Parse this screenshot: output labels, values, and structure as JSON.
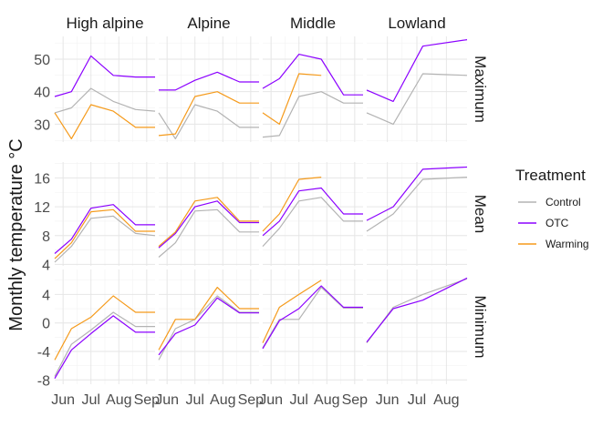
{
  "chart_data": {
    "type": "line",
    "ylabel": "Monthly temperature °C",
    "xlabel": "",
    "legend": {
      "title": "Treatment",
      "placement": "right",
      "entries": [
        {
          "name": "Control",
          "color": "#b3b3b3"
        },
        {
          "name": "OTC",
          "color": "#8b00ff"
        },
        {
          "name": "Warming",
          "color": "#f59a1a"
        }
      ]
    },
    "grid": true,
    "columns": [
      "High alpine",
      "Alpine",
      "Middle",
      "Lowland"
    ],
    "rows": [
      {
        "label": "Maximum",
        "ylim": [
          24.5,
          57
        ],
        "yticks": [
          30,
          40,
          50
        ],
        "ytick_labels": [
          "30",
          "40",
          "50"
        ]
      },
      {
        "label": "Mean",
        "ylim": [
          3.8,
          18.2
        ],
        "yticks": [
          4,
          8,
          12,
          16
        ],
        "ytick_labels": [
          "4",
          "8",
          "12",
          "16"
        ]
      },
      {
        "label": "Minimum",
        "ylim": [
          -8.6,
          7.5
        ],
        "yticks": [
          -8,
          -4,
          0,
          4
        ],
        "ytick_labels": [
          "-8",
          "-4",
          "0",
          "4"
        ]
      }
    ],
    "column_x_axes": [
      {
        "x_range": [
          5.7,
          9.3
        ],
        "ticks": [
          6,
          7,
          8,
          9
        ],
        "tick_labels": [
          "Jun",
          "Jul",
          "Aug",
          "Sep"
        ]
      },
      {
        "x_range": [
          5.7,
          9.3
        ],
        "ticks": [
          6,
          7,
          8,
          9
        ],
        "tick_labels": [
          "Jun",
          "Jul",
          "Aug",
          "Sep"
        ]
      },
      {
        "x_range": [
          5.7,
          9.3
        ],
        "ticks": [
          6,
          7,
          8,
          9
        ],
        "tick_labels": [
          "Jun",
          "Jul",
          "Aug",
          "Sep"
        ]
      },
      {
        "x_range": [
          5.3,
          8.7
        ],
        "ticks": [
          6,
          7,
          8
        ],
        "tick_labels": [
          "Jun",
          "Jul",
          "Aug"
        ]
      }
    ],
    "panels": [
      {
        "row": "Maximum",
        "column": "High alpine",
        "series": [
          {
            "name": "Control",
            "x": [
              5.7,
              6.3,
              7,
              7.8,
              8.6,
              9.3
            ],
            "y": [
              33.5,
              35,
              41,
              37,
              34.5,
              34
            ]
          },
          {
            "name": "OTC",
            "x": [
              5.7,
              6.3,
              7,
              7.8,
              8.6,
              9.3
            ],
            "y": [
              38.5,
              40,
              51,
              45,
              44.5,
              44.5
            ]
          },
          {
            "name": "Warming",
            "x": [
              5.7,
              6.3,
              7,
              7.8,
              8.6,
              9.3
            ],
            "y": [
              33.5,
              25.5,
              36,
              34,
              29,
              29
            ]
          }
        ]
      },
      {
        "row": "Maximum",
        "column": "Alpine",
        "series": [
          {
            "name": "Control",
            "x": [
              5.7,
              6.3,
              7,
              7.8,
              8.6,
              9.3
            ],
            "y": [
              33.5,
              25.5,
              36,
              34,
              29,
              29
            ]
          },
          {
            "name": "OTC",
            "x": [
              5.7,
              6.3,
              7,
              7.8,
              8.6,
              9.3
            ],
            "y": [
              40.5,
              40.5,
              43.5,
              46,
              43,
              43
            ]
          },
          {
            "name": "Warming",
            "x": [
              5.7,
              6.3,
              7,
              7.8,
              8.6,
              9.3
            ],
            "y": [
              26.5,
              27,
              38.5,
              40,
              36.5,
              36.5
            ]
          }
        ]
      },
      {
        "row": "Maximum",
        "column": "Middle",
        "series": [
          {
            "name": "Control",
            "x": [
              5.7,
              6.3,
              7,
              7.8,
              8.6,
              9.3
            ],
            "y": [
              26,
              26.5,
              38.5,
              40,
              36.5,
              36.5
            ]
          },
          {
            "name": "OTC",
            "x": [
              5.7,
              6.3,
              7,
              7.8,
              8.6,
              9.3
            ],
            "y": [
              41,
              44,
              51.5,
              50,
              39,
              39
            ]
          },
          {
            "name": "Warming",
            "x": [
              5.7,
              6.3,
              7,
              7.8
            ],
            "y": [
              33.5,
              30,
              45.5,
              45
            ]
          }
        ]
      },
      {
        "row": "Maximum",
        "column": "Lowland",
        "series": [
          {
            "name": "Control",
            "x": [
              5.3,
              6.2,
              7.2,
              8.7
            ],
            "y": [
              33.5,
              30,
              45.5,
              45
            ]
          },
          {
            "name": "OTC",
            "x": [
              5.3,
              6.2,
              7.2,
              8.7
            ],
            "y": [
              40.5,
              37,
              54,
              56
            ]
          }
        ]
      },
      {
        "row": "Mean",
        "column": "High alpine",
        "series": [
          {
            "name": "Control",
            "x": [
              5.7,
              6.3,
              7,
              7.8,
              8.6,
              9.3
            ],
            "y": [
              4.3,
              6.5,
              10.4,
              10.7,
              8.3,
              8
            ]
          },
          {
            "name": "OTC",
            "x": [
              5.7,
              6.3,
              7,
              7.8,
              8.6,
              9.3
            ],
            "y": [
              5.5,
              7.5,
              11.8,
              12.3,
              9.5,
              9.5
            ]
          },
          {
            "name": "Warming",
            "x": [
              5.7,
              6.3,
              7,
              7.8,
              8.6,
              9.3
            ],
            "y": [
              4.8,
              7,
              11.3,
              11.6,
              8.6,
              8.6
            ]
          }
        ]
      },
      {
        "row": "Mean",
        "column": "Alpine",
        "series": [
          {
            "name": "Control",
            "x": [
              5.7,
              6.3,
              7,
              7.8,
              8.6,
              9.3
            ],
            "y": [
              5,
              7,
              11.4,
              11.6,
              8.5,
              8.5
            ]
          },
          {
            "name": "OTC",
            "x": [
              5.7,
              6.3,
              7,
              7.8,
              8.6,
              9.3
            ],
            "y": [
              6.3,
              8.3,
              12,
              12.8,
              9.8,
              9.8
            ]
          },
          {
            "name": "Warming",
            "x": [
              5.7,
              6.3,
              7,
              7.8,
              8.6,
              9.3
            ],
            "y": [
              6.5,
              8.5,
              12.8,
              13.3,
              10,
              10
            ]
          }
        ]
      },
      {
        "row": "Mean",
        "column": "Middle",
        "series": [
          {
            "name": "Control",
            "x": [
              5.7,
              6.3,
              7,
              7.8,
              8.6,
              9.3
            ],
            "y": [
              6.5,
              9,
              12.8,
              13.3,
              10,
              10
            ]
          },
          {
            "name": "OTC",
            "x": [
              5.7,
              6.3,
              7,
              7.8,
              8.6,
              9.3
            ],
            "y": [
              8,
              10,
              14.2,
              14.6,
              11,
              11
            ]
          },
          {
            "name": "Warming",
            "x": [
              5.7,
              6.3,
              7,
              7.8
            ],
            "y": [
              8.6,
              11,
              15.8,
              16.1
            ]
          }
        ]
      },
      {
        "row": "Mean",
        "column": "Lowland",
        "series": [
          {
            "name": "Control",
            "x": [
              5.3,
              6.2,
              7.2,
              8.7
            ],
            "y": [
              8.6,
              11,
              15.8,
              16.1
            ]
          },
          {
            "name": "OTC",
            "x": [
              5.3,
              6.2,
              7.2,
              8.7
            ],
            "y": [
              10.1,
              12,
              17.2,
              17.5
            ]
          }
        ]
      },
      {
        "row": "Minimum",
        "column": "High alpine",
        "series": [
          {
            "name": "Control",
            "x": [
              5.7,
              6.3,
              7,
              7.8,
              8.6,
              9.3
            ],
            "y": [
              -7.5,
              -3,
              -1,
              1.5,
              -0.5,
              -0.5
            ]
          },
          {
            "name": "OTC",
            "x": [
              5.7,
              6.3,
              7,
              7.8,
              8.6,
              9.3
            ],
            "y": [
              -7.8,
              -3.8,
              -1.5,
              1,
              -1.3,
              -1.3
            ]
          },
          {
            "name": "Warming",
            "x": [
              5.7,
              6.3,
              7,
              7.8,
              8.6,
              9.3
            ],
            "y": [
              -5.2,
              -0.8,
              0.8,
              3.8,
              1.5,
              1.5
            ]
          }
        ]
      },
      {
        "row": "Minimum",
        "column": "Alpine",
        "series": [
          {
            "name": "Control",
            "x": [
              5.7,
              6.3,
              7,
              7.8,
              8.6,
              9.3
            ],
            "y": [
              -5.2,
              -0.8,
              0.5,
              3.8,
              1.5,
              1.5
            ]
          },
          {
            "name": "OTC",
            "x": [
              5.7,
              6.3,
              7,
              7.8,
              8.6,
              9.3
            ],
            "y": [
              -4.5,
              -1.5,
              -0.3,
              3.5,
              1.4,
              1.4
            ]
          },
          {
            "name": "Warming",
            "x": [
              5.7,
              6.3,
              7,
              7.8,
              8.6,
              9.3
            ],
            "y": [
              -3.8,
              0.5,
              0.5,
              5,
              2,
              2
            ]
          }
        ]
      },
      {
        "row": "Minimum",
        "column": "Middle",
        "series": [
          {
            "name": "Control",
            "x": [
              5.7,
              6.3,
              7,
              7.8,
              8.6,
              9.3
            ],
            "y": [
              -3.5,
              0.5,
              0.5,
              5,
              2.1,
              2.1
            ]
          },
          {
            "name": "OTC",
            "x": [
              5.7,
              6.3,
              7,
              7.8,
              8.6,
              9.3
            ],
            "y": [
              -3.6,
              0.3,
              2,
              5.2,
              2.2,
              2.2
            ]
          },
          {
            "name": "Warming",
            "x": [
              5.7,
              6.3,
              7,
              7.8
            ],
            "y": [
              -2.8,
              2.2,
              4,
              6
            ]
          }
        ]
      },
      {
        "row": "Minimum",
        "column": "Lowland",
        "series": [
          {
            "name": "Control",
            "x": [
              5.3,
              6.2,
              7.2,
              8.7
            ],
            "y": [
              -2.8,
              2.2,
              4,
              6.2
            ]
          },
          {
            "name": "OTC",
            "x": [
              5.3,
              6.2,
              7.2,
              8.7
            ],
            "y": [
              -2.7,
              2,
              3.2,
              6.3
            ]
          }
        ]
      }
    ]
  }
}
